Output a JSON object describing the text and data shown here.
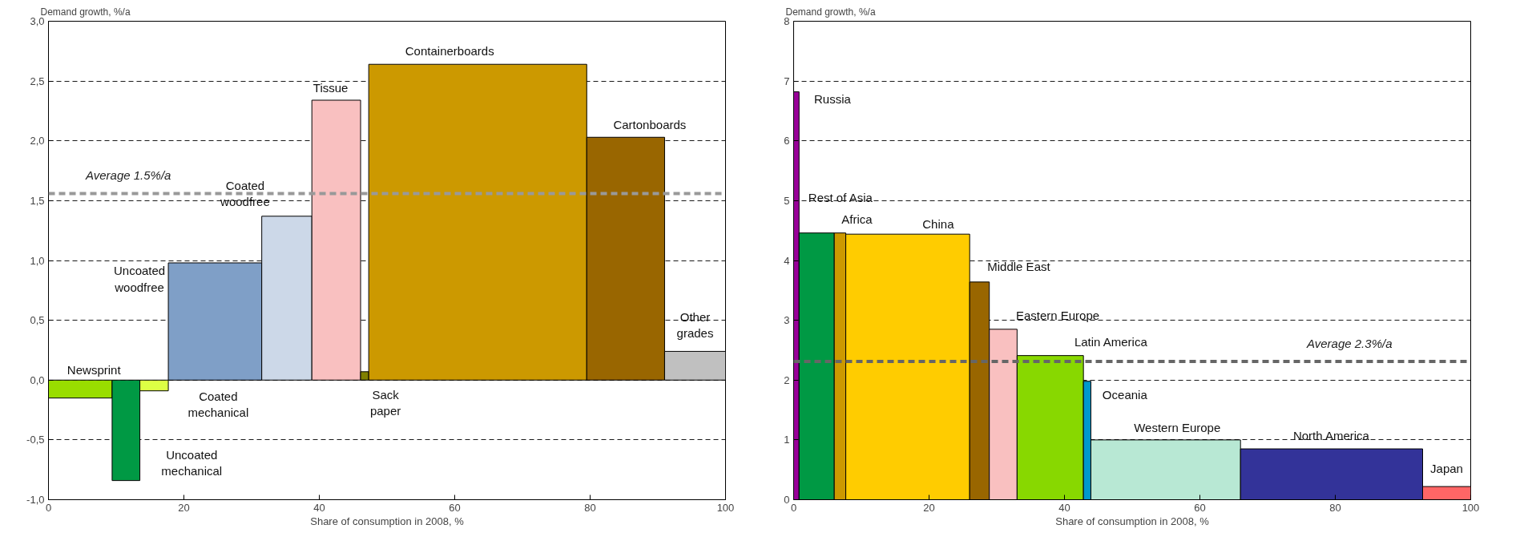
{
  "chart_data": [
    {
      "type": "histogram",
      "ylabel": "Demand growth, %/a",
      "xlabel": "Share of consumption in 2008, %",
      "bins": [
        0,
        9.4,
        13.5,
        17.7,
        31.5,
        38.9,
        46.1,
        47.3,
        79.5,
        91.0,
        100
      ],
      "values": [
        -0.15,
        -0.84,
        -0.09,
        0.98,
        1.37,
        2.34,
        0.07,
        2.64,
        2.03,
        0.24
      ],
      "colors": [
        "#99dd00",
        "#009944",
        "#ddff44",
        "#7f9fc7",
        "#ccd8e8",
        "#f9c0c0",
        "#808000",
        "#cc9900",
        "#996600",
        "#c0c0c0"
      ],
      "xlim": [
        0,
        100
      ],
      "xticks": [
        0,
        20,
        40,
        60,
        80,
        100
      ],
      "ylim": [
        -1,
        3
      ],
      "yticks": [
        {
          "value": -1,
          "label": "-1,0"
        },
        {
          "value": -0.5,
          "label": "-0,5"
        },
        {
          "value": 0,
          "label": "0,0"
        },
        {
          "value": 0.5,
          "label": "0,5"
        },
        {
          "value": 1,
          "label": "1,0"
        },
        {
          "value": 1.5,
          "label": "1,5"
        },
        {
          "value": 2,
          "label": "2,0"
        },
        {
          "value": 2.5,
          "label": "2,5"
        },
        {
          "value": 3,
          "label": "3,0"
        }
      ],
      "grid": "y",
      "ref_lines": [
        {
          "axis": "y",
          "value": 1.56,
          "label": "Average 1.5%/a",
          "color": "#999999",
          "line_style": "dashed"
        }
      ],
      "annotations": [
        {
          "text": "Newsprint",
          "x": 4.7,
          "y": -0.15
        },
        {
          "text": "Uncoated\nmechanical",
          "x": 11.45,
          "y": -0.84
        },
        {
          "text": "Coated\nmechanical",
          "x": 15.6,
          "y": -0.09
        },
        {
          "text": "Uncoated\nwoodfree",
          "x": 17.7,
          "y": 0.98
        },
        {
          "text": "Coated\nwoodfree",
          "x": 35.2,
          "y": 1.37
        },
        {
          "text": "Tissue",
          "x": 42.5,
          "y": 2.34
        },
        {
          "text": "Sack\npaper",
          "x": 46.7,
          "y": 0.07
        },
        {
          "text": "Containerboards",
          "x": 63.4,
          "y": 2.64
        },
        {
          "text": "Cartonboards",
          "x": 85.25,
          "y": 2.03
        },
        {
          "text": "Other\ngrades",
          "x": 95.5,
          "y": 0.24
        }
      ]
    },
    {
      "type": "histogram",
      "ylabel": "Demand growth, %/a",
      "xlabel": "Share of consumption in 2008, %",
      "bins": [
        0,
        0.8,
        6.0,
        7.7,
        26.0,
        28.9,
        33.0,
        42.8,
        43.9,
        66.0,
        92.9,
        100
      ],
      "values": [
        6.82,
        4.46,
        4.46,
        4.44,
        3.64,
        2.85,
        2.41,
        1.98,
        1.0,
        0.85,
        0.22
      ],
      "colors": [
        "#990099",
        "#009944",
        "#cc9900",
        "#ffcc00",
        "#996600",
        "#f9c0c0",
        "#88d800",
        "#0099cc",
        "#b8e8d4",
        "#333399",
        "#ff6666"
      ],
      "xlim": [
        0,
        100
      ],
      "xticks": [
        0,
        20,
        40,
        60,
        80,
        100
      ],
      "ylim": [
        0,
        8
      ],
      "yticks": [
        0,
        1,
        2,
        3,
        4,
        5,
        6,
        7,
        8
      ],
      "grid": "y",
      "ref_lines": [
        {
          "axis": "y",
          "value": 2.31,
          "label": "Average 2.3%/a",
          "color": "#666666",
          "line_style": "dashed"
        }
      ],
      "annotations": [
        {
          "text": "Russia",
          "x": 0.4,
          "y": 6.82
        },
        {
          "text": "Rest of Asia",
          "x": 3.4,
          "y": 4.46
        },
        {
          "text": "Africa",
          "x": 6.85,
          "y": 4.46
        },
        {
          "text": "China",
          "x": 16.85,
          "y": 4.44
        },
        {
          "text": "Middle East",
          "x": 27.45,
          "y": 3.64
        },
        {
          "text": "Eastern Europe",
          "x": 30.95,
          "y": 2.85
        },
        {
          "text": "Latin America",
          "x": 37.9,
          "y": 2.41
        },
        {
          "text": "Oceania",
          "x": 43.35,
          "y": 1.98
        },
        {
          "text": "Western Europe",
          "x": 55.0,
          "y": 1.0
        },
        {
          "text": "North America",
          "x": 79.45,
          "y": 0.85
        },
        {
          "text": "Japan",
          "x": 96.45,
          "y": 0.22
        }
      ]
    }
  ]
}
